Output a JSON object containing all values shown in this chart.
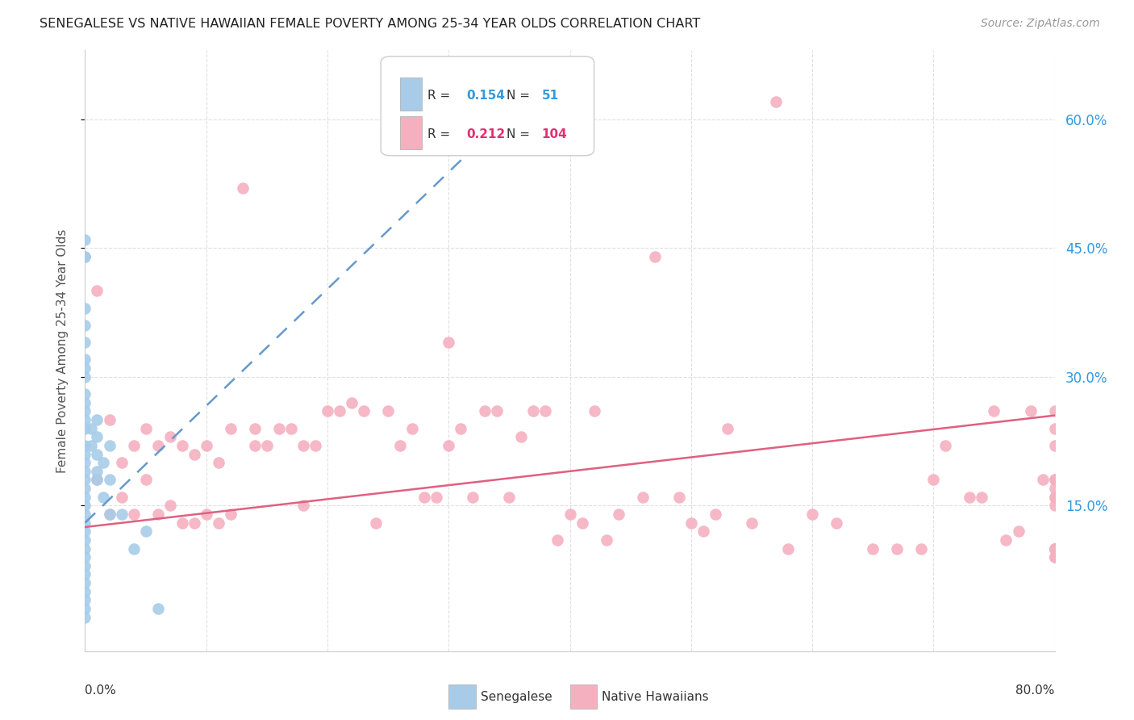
{
  "title": "SENEGALESE VS NATIVE HAWAIIAN FEMALE POVERTY AMONG 25-34 YEAR OLDS CORRELATION CHART",
  "source": "Source: ZipAtlas.com",
  "ylabel": "Female Poverty Among 25-34 Year Olds",
  "ytick_labels": [
    "15.0%",
    "30.0%",
    "45.0%",
    "60.0%"
  ],
  "ytick_values": [
    0.15,
    0.3,
    0.45,
    0.6
  ],
  "xtick_values": [
    0.0,
    0.1,
    0.2,
    0.3,
    0.4,
    0.5,
    0.6,
    0.7,
    0.8
  ],
  "legend_R_sen": "0.154",
  "legend_N_sen": "51",
  "legend_R_nh": "0.212",
  "legend_N_nh": "104",
  "senegalese_color": "#a8cce8",
  "native_hawaiian_color": "#f5b0c0",
  "senegalese_trendline_color": "#6699cc",
  "native_hawaiian_trendline_color": "#e06080",
  "background_color": "#ffffff",
  "grid_color": "#e0e0e0",
  "xlim": [
    0.0,
    0.8
  ],
  "ylim": [
    -0.02,
    0.68
  ],
  "senegalese_x": [
    0.0,
    0.0,
    0.0,
    0.0,
    0.0,
    0.0,
    0.0,
    0.0,
    0.0,
    0.0,
    0.0,
    0.0,
    0.0,
    0.0,
    0.0,
    0.0,
    0.0,
    0.0,
    0.0,
    0.0,
    0.0,
    0.0,
    0.0,
    0.0,
    0.0,
    0.0,
    0.0,
    0.0,
    0.0,
    0.0,
    0.0,
    0.0,
    0.0,
    0.0,
    0.0,
    0.005,
    0.005,
    0.01,
    0.01,
    0.01,
    0.01,
    0.01,
    0.015,
    0.015,
    0.02,
    0.02,
    0.02,
    0.03,
    0.04,
    0.05,
    0.06
  ],
  "senegalese_y": [
    0.02,
    0.03,
    0.05,
    0.07,
    0.08,
    0.09,
    0.1,
    0.11,
    0.12,
    0.13,
    0.14,
    0.15,
    0.16,
    0.17,
    0.18,
    0.19,
    0.2,
    0.21,
    0.22,
    0.24,
    0.25,
    0.26,
    0.27,
    0.28,
    0.3,
    0.31,
    0.32,
    0.34,
    0.36,
    0.38,
    0.44,
    0.44,
    0.46,
    0.04,
    0.06,
    0.24,
    0.22,
    0.25,
    0.23,
    0.21,
    0.19,
    0.18,
    0.2,
    0.16,
    0.22,
    0.18,
    0.14,
    0.14,
    0.1,
    0.12,
    0.03
  ],
  "native_hawaiian_x": [
    0.01,
    0.01,
    0.02,
    0.02,
    0.03,
    0.03,
    0.04,
    0.04,
    0.05,
    0.05,
    0.06,
    0.06,
    0.07,
    0.07,
    0.08,
    0.08,
    0.09,
    0.09,
    0.1,
    0.1,
    0.11,
    0.11,
    0.12,
    0.12,
    0.13,
    0.14,
    0.14,
    0.15,
    0.16,
    0.17,
    0.18,
    0.18,
    0.19,
    0.2,
    0.21,
    0.22,
    0.23,
    0.24,
    0.25,
    0.26,
    0.27,
    0.28,
    0.29,
    0.3,
    0.3,
    0.31,
    0.32,
    0.33,
    0.34,
    0.35,
    0.36,
    0.37,
    0.38,
    0.39,
    0.4,
    0.41,
    0.42,
    0.43,
    0.44,
    0.46,
    0.47,
    0.49,
    0.5,
    0.51,
    0.52,
    0.53,
    0.55,
    0.57,
    0.58,
    0.6,
    0.62,
    0.65,
    0.67,
    0.69,
    0.7,
    0.71,
    0.73,
    0.74,
    0.75,
    0.76,
    0.77,
    0.78,
    0.79,
    0.8,
    0.8,
    0.8,
    0.8,
    0.8,
    0.8,
    0.8,
    0.8,
    0.8,
    0.8,
    0.8,
    0.8,
    0.8,
    0.8,
    0.8,
    0.8,
    0.8,
    0.8,
    0.8,
    0.8,
    0.8
  ],
  "native_hawaiian_y": [
    0.4,
    0.18,
    0.25,
    0.14,
    0.2,
    0.16,
    0.22,
    0.14,
    0.24,
    0.18,
    0.22,
    0.14,
    0.23,
    0.15,
    0.22,
    0.13,
    0.21,
    0.13,
    0.22,
    0.14,
    0.2,
    0.13,
    0.24,
    0.14,
    0.52,
    0.22,
    0.24,
    0.22,
    0.24,
    0.24,
    0.22,
    0.15,
    0.22,
    0.26,
    0.26,
    0.27,
    0.26,
    0.13,
    0.26,
    0.22,
    0.24,
    0.16,
    0.16,
    0.22,
    0.34,
    0.24,
    0.16,
    0.26,
    0.26,
    0.16,
    0.23,
    0.26,
    0.26,
    0.11,
    0.14,
    0.13,
    0.26,
    0.11,
    0.14,
    0.16,
    0.44,
    0.16,
    0.13,
    0.12,
    0.14,
    0.24,
    0.13,
    0.62,
    0.1,
    0.14,
    0.13,
    0.1,
    0.1,
    0.1,
    0.18,
    0.22,
    0.16,
    0.16,
    0.26,
    0.11,
    0.12,
    0.26,
    0.18,
    0.16,
    0.24,
    0.18,
    0.1,
    0.1,
    0.16,
    0.15,
    0.1,
    0.09,
    0.18,
    0.26,
    0.22,
    0.17,
    0.1,
    0.1,
    0.1,
    0.09,
    0.1,
    0.1,
    0.09,
    0.1
  ]
}
